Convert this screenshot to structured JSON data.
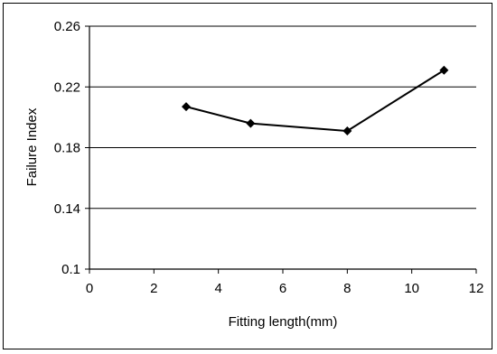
{
  "chart_data": {
    "type": "line",
    "title": "",
    "xlabel": "Fitting length(mm)",
    "ylabel": "Failure Index",
    "xlim": [
      0,
      12
    ],
    "ylim": [
      0.1,
      0.26
    ],
    "xticks": [
      "0",
      "2",
      "4",
      "6",
      "8",
      "10",
      "12"
    ],
    "yticks": [
      "0.1",
      "0.14",
      "0.18",
      "0.22",
      "0.26"
    ],
    "grid": "horizontal",
    "legend": "none",
    "series": [
      {
        "x": [
          3,
          5,
          8,
          11
        ],
        "y": [
          0.207,
          0.196,
          0.191,
          0.231
        ],
        "marker": "diamond",
        "color": "#000000"
      }
    ]
  }
}
